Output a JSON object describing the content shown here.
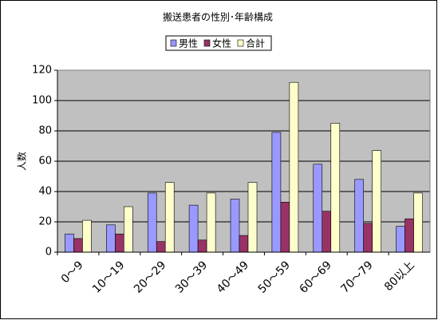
{
  "chart_data": {
    "type": "bar",
    "title": "搬送患者の性別･年齢構成",
    "y_label": "人数",
    "categories": [
      "0～9",
      "10～19",
      "20～29",
      "30～39",
      "40～49",
      "50～59",
      "60～69",
      "70～79",
      "80以上"
    ],
    "series": [
      {
        "name": "男性",
        "color": "#9999ff",
        "values": [
          12,
          18,
          39,
          31,
          35,
          79,
          58,
          48,
          17
        ]
      },
      {
        "name": "女性",
        "color": "#993366",
        "values": [
          9,
          12,
          7,
          8,
          11,
          33,
          27,
          19,
          22
        ]
      },
      {
        "name": "合計",
        "color": "#ffffcc",
        "values": [
          21,
          30,
          46,
          39,
          46,
          112,
          85,
          67,
          39
        ]
      }
    ],
    "ylim": [
      0,
      120
    ],
    "yticks": [
      0,
      20,
      40,
      60,
      80,
      100,
      120
    ],
    "grid": true,
    "legend": "top"
  }
}
